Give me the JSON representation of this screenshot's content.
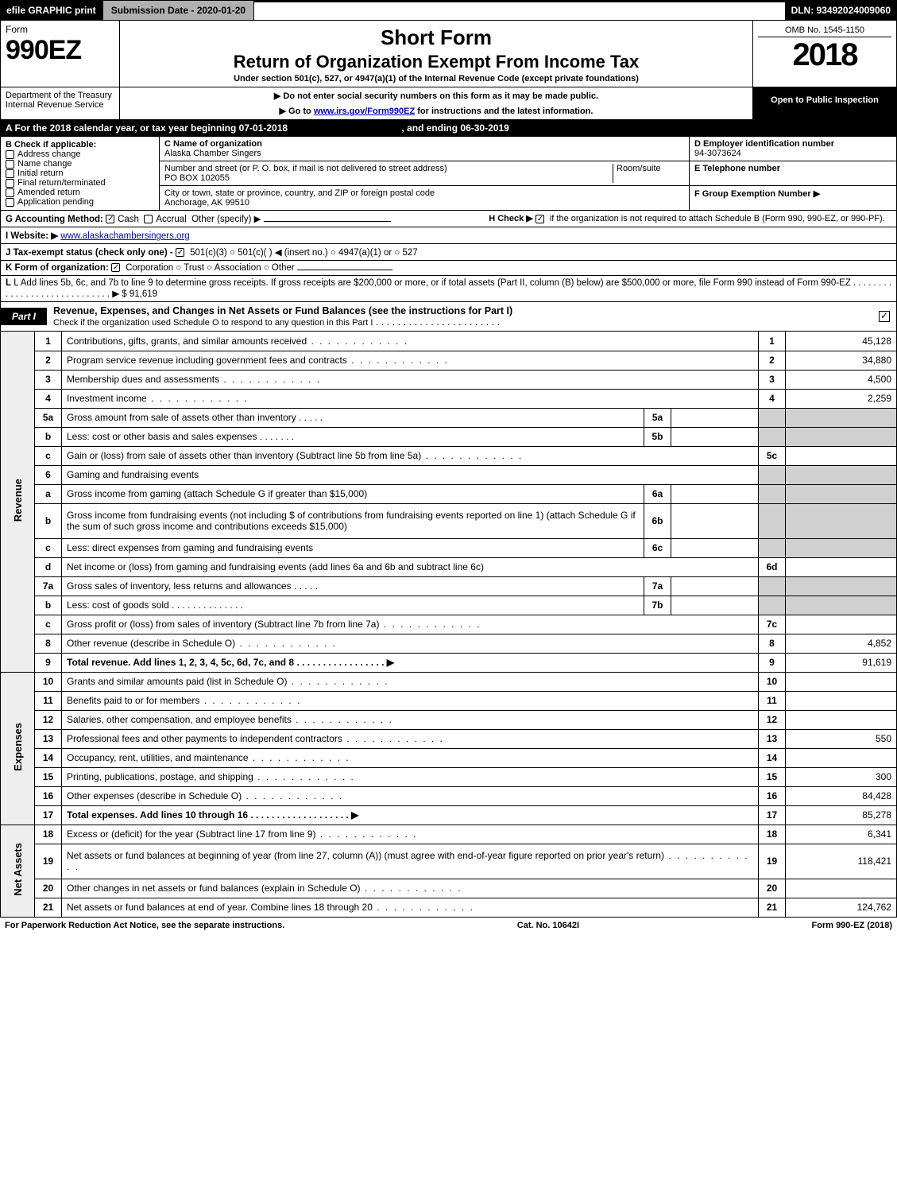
{
  "topbar": {
    "efile": "efile GRAPHIC print",
    "submission": "Submission Date - 2020-01-20",
    "dln": "DLN: 93492024009060"
  },
  "header": {
    "form_label": "Form",
    "form_num": "990EZ",
    "dept1": "Department of the Treasury",
    "dept2": "Internal Revenue Service",
    "title": "Short Form",
    "subtitle": "Return of Organization Exempt From Income Tax",
    "under": "Under section 501(c), 527, or 4947(a)(1) of the Internal Revenue Code (except private foundations)",
    "note1": "Do not enter social security numbers on this form as it may be made public.",
    "note2": "Go to www.irs.gov/Form990EZ for instructions and the latest information.",
    "omb": "OMB No. 1545-1150",
    "year": "2018",
    "open": "Open to Public Inspection"
  },
  "period": {
    "text_a": "A For the 2018 calendar year, or tax year beginning ",
    "start": "07-01-2018",
    "mid": ", and ending ",
    "end": "06-30-2019"
  },
  "blockB": {
    "heading": "B Check if applicable:",
    "items": [
      "Address change",
      "Name change",
      "Initial return",
      "Final return/terminated",
      "Amended return",
      "Application pending"
    ]
  },
  "blockC": {
    "name_label": "C Name of organization",
    "name": "Alaska Chamber Singers",
    "addr_label": "Number and street (or P. O. box, if mail is not delivered to street address)",
    "room_label": "Room/suite",
    "addr": "PO BOX 102055",
    "city_label": "City or town, state or province, country, and ZIP or foreign postal code",
    "city": "Anchorage, AK  99510"
  },
  "blockD": {
    "label": "D Employer identification number",
    "value": "94-3073624",
    "e_label": "E Telephone number",
    "f_label": "F Group Exemption Number ▶"
  },
  "lineG": {
    "label": "G Accounting Method:",
    "cash": "Cash",
    "accrual": "Accrual",
    "other": "Other (specify) ▶"
  },
  "lineH": {
    "text": "H  Check ▶",
    "tail": "if the organization is not required to attach Schedule B (Form 990, 990-EZ, or 990-PF)."
  },
  "lineI": {
    "label": "I Website: ▶",
    "value": "www.alaskachambersingers.org"
  },
  "lineJ": {
    "label": "J Tax-exempt status (check only one) -",
    "opts": "501(c)(3)   ○ 501(c)(  ) ◀ (insert no.)  ○ 4947(a)(1) or  ○ 527"
  },
  "lineK": {
    "label": "K Form of organization:",
    "opts": "Corporation   ○ Trust   ○ Association   ○ Other"
  },
  "lineL": {
    "text": "L Add lines 5b, 6c, and 7b to line 9 to determine gross receipts. If gross receipts are $200,000 or more, or if total assets (Part II, column (B) below) are $500,000 or more, file Form 990 instead of Form 990-EZ  .  .  .  .  .  .  .  .  .  .  .  .  .  .  .  .  .  .  .  .  .  .  .  .  .  .  .  .  . ▶ $ ",
    "amount": "91,619"
  },
  "part1": {
    "tab": "Part I",
    "title": "Revenue, Expenses, and Changes in Net Assets or Fund Balances (see the instructions for Part I)",
    "check_note": "Check if the organization used Schedule O to respond to any question in this Part I"
  },
  "sides": {
    "rev": "Revenue",
    "exp": "Expenses",
    "net": "Net Assets"
  },
  "rows": [
    {
      "n": "1",
      "text": "Contributions, gifts, grants, and similar amounts received",
      "r": "1",
      "amt": "45,128",
      "group": "rev",
      "dots": true
    },
    {
      "n": "2",
      "text": "Program service revenue including government fees and contracts",
      "r": "2",
      "amt": "34,880",
      "group": "rev",
      "dots": true
    },
    {
      "n": "3",
      "text": "Membership dues and assessments",
      "r": "3",
      "amt": "4,500",
      "group": "rev",
      "dots": true
    },
    {
      "n": "4",
      "text": "Investment income",
      "r": "4",
      "amt": "2,259",
      "group": "rev",
      "dots": true
    },
    {
      "n": "5a",
      "text": "Gross amount from sale of assets other than inventory  .  .  .  .  .",
      "mid": "5a",
      "group": "rev",
      "gray": true
    },
    {
      "n": "b",
      "text": "Less: cost or other basis and sales expenses  .  .  .  .  .  .  .",
      "mid": "5b",
      "group": "rev",
      "gray": true
    },
    {
      "n": "c",
      "text": "Gain or (loss) from sale of assets other than inventory (Subtract line 5b from line 5a)",
      "r": "5c",
      "amt": "",
      "group": "rev",
      "dots": true
    },
    {
      "n": "6",
      "text": "Gaming and fundraising events",
      "group": "rev",
      "gray": true,
      "noamt": true
    },
    {
      "n": "a",
      "text": "Gross income from gaming (attach Schedule G if greater than $15,000)",
      "mid": "6a",
      "group": "rev",
      "gray": true
    },
    {
      "n": "b",
      "text": "Gross income from fundraising events (not including $              of contributions from fundraising events reported on line 1) (attach Schedule G if the sum of such gross income and contributions exceeds $15,000)",
      "mid": "6b",
      "group": "rev",
      "gray": true,
      "tall": true
    },
    {
      "n": "c",
      "text": "Less: direct expenses from gaming and fundraising events",
      "mid": "6c",
      "group": "rev",
      "gray": true
    },
    {
      "n": "d",
      "text": "Net income or (loss) from gaming and fundraising events (add lines 6a and 6b and subtract line 6c)",
      "r": "6d",
      "amt": "",
      "group": "rev"
    },
    {
      "n": "7a",
      "text": "Gross sales of inventory, less returns and allowances  .  .  .  .  .",
      "mid": "7a",
      "group": "rev",
      "gray": true
    },
    {
      "n": "b",
      "text": "Less: cost of goods sold  .  .  .  .  .  .  .  .  .  .  .  .  .  .",
      "mid": "7b",
      "group": "rev",
      "gray": true
    },
    {
      "n": "c",
      "text": "Gross profit or (loss) from sales of inventory (Subtract line 7b from line 7a)",
      "r": "7c",
      "amt": "",
      "group": "rev",
      "dots": true
    },
    {
      "n": "8",
      "text": "Other revenue (describe in Schedule O)",
      "r": "8",
      "amt": "4,852",
      "group": "rev",
      "dots": true
    },
    {
      "n": "9",
      "text": "Total revenue. Add lines 1, 2, 3, 4, 5c, 6d, 7c, and 8  .  .  .  .  .  .  .  .  .  .  .  .  .  .  .  .  . ▶",
      "r": "9",
      "amt": "91,619",
      "group": "rev",
      "bold": true
    },
    {
      "n": "10",
      "text": "Grants and similar amounts paid (list in Schedule O)",
      "r": "10",
      "amt": "",
      "group": "exp",
      "dots": true
    },
    {
      "n": "11",
      "text": "Benefits paid to or for members",
      "r": "11",
      "amt": "",
      "group": "exp",
      "dots": true
    },
    {
      "n": "12",
      "text": "Salaries, other compensation, and employee benefits",
      "r": "12",
      "amt": "",
      "group": "exp",
      "dots": true
    },
    {
      "n": "13",
      "text": "Professional fees and other payments to independent contractors",
      "r": "13",
      "amt": "550",
      "group": "exp",
      "dots": true
    },
    {
      "n": "14",
      "text": "Occupancy, rent, utilities, and maintenance",
      "r": "14",
      "amt": "",
      "group": "exp",
      "dots": true
    },
    {
      "n": "15",
      "text": "Printing, publications, postage, and shipping",
      "r": "15",
      "amt": "300",
      "group": "exp",
      "dots": true
    },
    {
      "n": "16",
      "text": "Other expenses (describe in Schedule O)",
      "r": "16",
      "amt": "84,428",
      "group": "exp",
      "dots": true
    },
    {
      "n": "17",
      "text": "Total expenses. Add lines 10 through 16  .  .  .  .  .  .  .  .  .  .  .  .  .  .  .  .  .  .  . ▶",
      "r": "17",
      "amt": "85,278",
      "group": "exp",
      "bold": true
    },
    {
      "n": "18",
      "text": "Excess or (deficit) for the year (Subtract line 17 from line 9)",
      "r": "18",
      "amt": "6,341",
      "group": "net",
      "dots": true
    },
    {
      "n": "19",
      "text": "Net assets or fund balances at beginning of year (from line 27, column (A)) (must agree with end-of-year figure reported on prior year's return)",
      "r": "19",
      "amt": "118,421",
      "group": "net",
      "dots": true,
      "tall": true
    },
    {
      "n": "20",
      "text": "Other changes in net assets or fund balances (explain in Schedule O)",
      "r": "20",
      "amt": "",
      "group": "net",
      "dots": true
    },
    {
      "n": "21",
      "text": "Net assets or fund balances at end of year. Combine lines 18 through 20",
      "r": "21",
      "amt": "124,762",
      "group": "net",
      "dots": true
    }
  ],
  "footer": {
    "left": "For Paperwork Reduction Act Notice, see the separate instructions.",
    "mid": "Cat. No. 10642I",
    "right": "Form 990-EZ (2018)"
  }
}
